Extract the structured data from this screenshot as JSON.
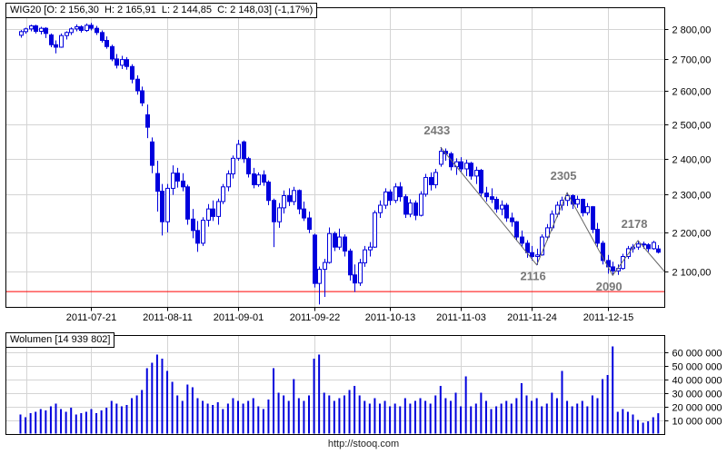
{
  "footer": {
    "url": "http://stooq.com"
  },
  "chart_data": {
    "type": "candlestick_with_volume",
    "instrument": "WIG20",
    "title_main": "WIG20 [O: 2 156,30  H: 2 165,91  L: 2 144,85  C: 2 148,03] (-1,17%)",
    "title_volume": "Wolumen [14 939 802]",
    "last_session": {
      "open": "2 156,30",
      "high": "2 165,91",
      "low": "2 144,85",
      "close": "2 148,03",
      "change_pct": "-1,17%",
      "volume": "14 939 802"
    },
    "colors": {
      "candle": "#0000dd",
      "grid": "#d4d4d4",
      "border": "#000000",
      "support": "#ff0000",
      "zigzag": "#666666",
      "annotation": "#787878",
      "text": "#000000"
    },
    "price_axis": {
      "scale": "log",
      "side": "right",
      "ticks": [
        {
          "value": 2800,
          "label": "2 800,00"
        },
        {
          "value": 2700,
          "label": "2 700,00"
        },
        {
          "value": 2600,
          "label": "2 600,00"
        },
        {
          "value": 2500,
          "label": "2 500,00"
        },
        {
          "value": 2400,
          "label": "2 400,00"
        },
        {
          "value": 2300,
          "label": "2 300,00"
        },
        {
          "value": 2200,
          "label": "2 200,00"
        },
        {
          "value": 2100,
          "label": "2 100,00"
        }
      ]
    },
    "volume_axis": {
      "side": "right",
      "ticks": [
        {
          "value": 60,
          "label": "60 000 000"
        },
        {
          "value": 50,
          "label": "50 000 000"
        },
        {
          "value": 40,
          "label": "40 000 000"
        },
        {
          "value": 30,
          "label": "30 000 000"
        },
        {
          "value": 20,
          "label": "20 000 000"
        },
        {
          "value": 10,
          "label": "10 000 000"
        }
      ]
    },
    "x_axis": {
      "extra_gridline_index": 1.2,
      "labels": [
        {
          "text": "2011-07-21",
          "index": 14
        },
        {
          "text": "2011-08-11",
          "index": 29
        },
        {
          "text": "2011-09-01",
          "index": 43
        },
        {
          "text": "2011-09-22",
          "index": 58
        },
        {
          "text": "2011-10-13",
          "index": 73
        },
        {
          "text": "2011-11-03",
          "index": 87
        },
        {
          "text": "2011-11-24",
          "index": 101
        },
        {
          "text": "2011-12-15",
          "index": 116
        }
      ]
    },
    "support_line": {
      "value": 2050
    },
    "zigzag_points": [
      {
        "index": 83,
        "value": 2433
      },
      {
        "index": 102,
        "value": 2116
      },
      {
        "index": 108,
        "value": 2305
      },
      {
        "index": 117,
        "value": 2090
      },
      {
        "index": 122,
        "value": 2178
      },
      {
        "index": 127.2,
        "value": 2100
      }
    ],
    "annotations": [
      {
        "text": "2433",
        "index": 83,
        "value": 2433,
        "placement": "above"
      },
      {
        "text": "2116",
        "index": 102,
        "value": 2116,
        "placement": "below"
      },
      {
        "text": "2305",
        "index": 108,
        "value": 2305,
        "placement": "above"
      },
      {
        "text": "2090",
        "index": 117,
        "value": 2090,
        "placement": "below"
      },
      {
        "text": "2178",
        "index": 122,
        "value": 2178,
        "placement": "above"
      }
    ],
    "candles_format": [
      "date",
      "open",
      "high",
      "low",
      "close",
      "volume_millions"
    ],
    "candles": [
      [
        "2011-07-01",
        2778,
        2795,
        2770,
        2790,
        14
      ],
      [
        "2011-07-04",
        2790,
        2803,
        2783,
        2799,
        12
      ],
      [
        "2011-07-05",
        2799,
        2813,
        2791,
        2809,
        15
      ],
      [
        "2011-07-06",
        2809,
        2813,
        2784,
        2791,
        16
      ],
      [
        "2011-07-07",
        2791,
        2806,
        2781,
        2801,
        18
      ],
      [
        "2011-07-08",
        2801,
        2805,
        2769,
        2784,
        17
      ],
      [
        "2011-07-11",
        2779,
        2784,
        2739,
        2747,
        20
      ],
      [
        "2011-07-12",
        2747,
        2761,
        2719,
        2739,
        22
      ],
      [
        "2011-07-13",
        2739,
        2784,
        2737,
        2777,
        18
      ],
      [
        "2011-07-14",
        2777,
        2791,
        2764,
        2787,
        16
      ],
      [
        "2011-07-15",
        2787,
        2804,
        2779,
        2799,
        19
      ],
      [
        "2011-07-18",
        2799,
        2814,
        2791,
        2806,
        14
      ],
      [
        "2011-07-19",
        2806,
        2811,
        2787,
        2794,
        15
      ],
      [
        "2011-07-20",
        2794,
        2817,
        2789,
        2811,
        16
      ],
      [
        "2011-07-21",
        2811,
        2819,
        2794,
        2801,
        18
      ],
      [
        "2011-07-22",
        2801,
        2809,
        2779,
        2787,
        15
      ],
      [
        "2011-07-25",
        2787,
        2794,
        2754,
        2761,
        17
      ],
      [
        "2011-07-26",
        2761,
        2774,
        2734,
        2741,
        19
      ],
      [
        "2011-07-27",
        2741,
        2747,
        2694,
        2701,
        24
      ],
      [
        "2011-07-28",
        2701,
        2717,
        2671,
        2681,
        22
      ],
      [
        "2011-07-29",
        2681,
        2711,
        2669,
        2699,
        20
      ],
      [
        "2011-08-01",
        2699,
        2707,
        2667,
        2677,
        21
      ],
      [
        "2011-08-02",
        2677,
        2684,
        2624,
        2637,
        26
      ],
      [
        "2011-08-03",
        2637,
        2649,
        2589,
        2601,
        28
      ],
      [
        "2011-08-04",
        2601,
        2614,
        2554,
        2564,
        32
      ],
      [
        "2011-08-05",
        2528,
        2559,
        2459,
        2491,
        48
      ],
      [
        "2011-08-08",
        2448,
        2461,
        2359,
        2381,
        52
      ],
      [
        "2011-08-09",
        2358,
        2394,
        2254,
        2309,
        58
      ],
      [
        "2011-08-10",
        2309,
        2329,
        2191,
        2227,
        55
      ],
      [
        "2011-08-11",
        2227,
        2329,
        2199,
        2317,
        46
      ],
      [
        "2011-08-12",
        2317,
        2381,
        2299,
        2359,
        38
      ],
      [
        "2011-08-16",
        2359,
        2374,
        2319,
        2337,
        28
      ],
      [
        "2011-08-17",
        2337,
        2359,
        2309,
        2321,
        24
      ],
      [
        "2011-08-18",
        2321,
        2327,
        2219,
        2234,
        36
      ],
      [
        "2011-08-19",
        2234,
        2261,
        2184,
        2204,
        34
      ],
      [
        "2011-08-22",
        2204,
        2229,
        2149,
        2171,
        26
      ],
      [
        "2011-08-23",
        2171,
        2239,
        2164,
        2231,
        24
      ],
      [
        "2011-08-24",
        2231,
        2274,
        2214,
        2261,
        22
      ],
      [
        "2011-08-25",
        2261,
        2284,
        2229,
        2241,
        21
      ],
      [
        "2011-08-26",
        2241,
        2289,
        2219,
        2281,
        23
      ],
      [
        "2011-08-29",
        2281,
        2329,
        2274,
        2321,
        18
      ],
      [
        "2011-08-30",
        2321,
        2367,
        2309,
        2357,
        22
      ],
      [
        "2011-08-31",
        2357,
        2409,
        2344,
        2401,
        26
      ],
      [
        "2011-09-01",
        2401,
        2454,
        2394,
        2441,
        24
      ],
      [
        "2011-09-02",
        2448,
        2452,
        2388,
        2400,
        22
      ],
      [
        "2011-09-05",
        2400,
        2405,
        2347,
        2357,
        24
      ],
      [
        "2011-09-06",
        2357,
        2374,
        2317,
        2327,
        26
      ],
      [
        "2011-09-07",
        2327,
        2361,
        2321,
        2354,
        20
      ],
      [
        "2011-09-08",
        2354,
        2367,
        2324,
        2334,
        18
      ],
      [
        "2011-09-09",
        2334,
        2339,
        2271,
        2284,
        25
      ],
      [
        "2011-09-12",
        2284,
        2289,
        2161,
        2227,
        48
      ],
      [
        "2011-09-13",
        2227,
        2277,
        2211,
        2264,
        30
      ],
      [
        "2011-09-14",
        2264,
        2311,
        2249,
        2297,
        28
      ],
      [
        "2011-09-15",
        2297,
        2317,
        2269,
        2281,
        24
      ],
      [
        "2011-09-16",
        2281,
        2321,
        2271,
        2311,
        40
      ],
      [
        "2011-09-19",
        2311,
        2314,
        2247,
        2261,
        26
      ],
      [
        "2011-09-20",
        2261,
        2281,
        2229,
        2237,
        24
      ],
      [
        "2011-09-21",
        2237,
        2254,
        2197,
        2207,
        28
      ],
      [
        "2011-09-22",
        2192,
        2196,
        2060,
        2070,
        55
      ],
      [
        "2011-09-23",
        2070,
        2112,
        2019,
        2105,
        58
      ],
      [
        "2011-09-26",
        2105,
        2131,
        2037,
        2122,
        30
      ],
      [
        "2011-09-27",
        2122,
        2212,
        2119,
        2196,
        28
      ],
      [
        "2011-09-28",
        2196,
        2201,
        2151,
        2161,
        24
      ],
      [
        "2011-09-29",
        2161,
        2209,
        2154,
        2187,
        26
      ],
      [
        "2011-09-30",
        2187,
        2194,
        2137,
        2151,
        28
      ],
      [
        "2011-10-03",
        2151,
        2157,
        2077,
        2091,
        32
      ],
      [
        "2011-10-04",
        2091,
        2117,
        2049,
        2071,
        35
      ],
      [
        "2011-10-05",
        2071,
        2131,
        2064,
        2121,
        28
      ],
      [
        "2011-10-06",
        2121,
        2164,
        2111,
        2154,
        24
      ],
      [
        "2011-10-07",
        2154,
        2174,
        2137,
        2161,
        22
      ],
      [
        "2011-10-10",
        2161,
        2257,
        2159,
        2251,
        26
      ],
      [
        "2011-10-11",
        2251,
        2284,
        2237,
        2271,
        22
      ],
      [
        "2011-10-12",
        2271,
        2317,
        2261,
        2307,
        24
      ],
      [
        "2011-10-13",
        2307,
        2314,
        2271,
        2284,
        20
      ],
      [
        "2011-10-14",
        2284,
        2331,
        2277,
        2321,
        22
      ],
      [
        "2011-10-17",
        2321,
        2334,
        2281,
        2294,
        20
      ],
      [
        "2011-10-18",
        2294,
        2301,
        2237,
        2247,
        26
      ],
      [
        "2011-10-19",
        2247,
        2287,
        2239,
        2277,
        22
      ],
      [
        "2011-10-20",
        2277,
        2284,
        2231,
        2244,
        24
      ],
      [
        "2011-10-21",
        2244,
        2309,
        2241,
        2301,
        26
      ],
      [
        "2011-10-24",
        2301,
        2357,
        2294,
        2347,
        24
      ],
      [
        "2011-10-25",
        2347,
        2361,
        2311,
        2327,
        22
      ],
      [
        "2011-10-26",
        2327,
        2371,
        2317,
        2361,
        28
      ],
      [
        "2011-10-27",
        2384,
        2433,
        2377,
        2421,
        35
      ],
      [
        "2011-10-28",
        2421,
        2429,
        2394,
        2414,
        26
      ],
      [
        "2011-10-31",
        2414,
        2419,
        2367,
        2377,
        24
      ],
      [
        "2011-11-02",
        2377,
        2401,
        2354,
        2391,
        30
      ],
      [
        "2011-11-03",
        2391,
        2404,
        2361,
        2371,
        20
      ],
      [
        "2011-11-04",
        2371,
        2397,
        2351,
        2387,
        42
      ],
      [
        "2011-11-07",
        2387,
        2391,
        2341,
        2351,
        20
      ],
      [
        "2011-11-08",
        2351,
        2377,
        2329,
        2367,
        22
      ],
      [
        "2011-11-09",
        2367,
        2371,
        2294,
        2304,
        30
      ],
      [
        "2011-11-10",
        2304,
        2321,
        2281,
        2294,
        24
      ],
      [
        "2011-11-14",
        2294,
        2317,
        2277,
        2287,
        18
      ],
      [
        "2011-11-15",
        2287,
        2294,
        2251,
        2261,
        20
      ],
      [
        "2011-11-16",
        2261,
        2284,
        2244,
        2271,
        22
      ],
      [
        "2011-11-17",
        2271,
        2277,
        2227,
        2237,
        24
      ],
      [
        "2011-11-18",
        2237,
        2251,
        2214,
        2227,
        22
      ],
      [
        "2011-11-21",
        2227,
        2229,
        2177,
        2187,
        26
      ],
      [
        "2011-11-22",
        2187,
        2204,
        2161,
        2171,
        37
      ],
      [
        "2011-11-23",
        2171,
        2179,
        2134,
        2147,
        28
      ],
      [
        "2011-11-24",
        2147,
        2164,
        2127,
        2137,
        24
      ],
      [
        "2011-11-25",
        2137,
        2157,
        2116,
        2141,
        26
      ],
      [
        "2011-11-28",
        2141,
        2194,
        2139,
        2187,
        20
      ],
      [
        "2011-11-29",
        2187,
        2221,
        2179,
        2211,
        22
      ],
      [
        "2011-11-30",
        2211,
        2257,
        2204,
        2247,
        30
      ],
      [
        "2011-12-01",
        2247,
        2281,
        2239,
        2271,
        26
      ],
      [
        "2011-12-02",
        2271,
        2294,
        2257,
        2284,
        46
      ],
      [
        "2011-12-05",
        2284,
        2305,
        2269,
        2297,
        24
      ],
      [
        "2011-12-06",
        2297,
        2301,
        2261,
        2274,
        20
      ],
      [
        "2011-12-07",
        2274,
        2297,
        2264,
        2287,
        22
      ],
      [
        "2011-12-08",
        2287,
        2289,
        2241,
        2251,
        24
      ],
      [
        "2011-12-09",
        2251,
        2277,
        2244,
        2267,
        20
      ],
      [
        "2011-12-12",
        2267,
        2269,
        2197,
        2207,
        28
      ],
      [
        "2011-12-13",
        2207,
        2224,
        2161,
        2171,
        26
      ],
      [
        "2011-12-14",
        2171,
        2177,
        2117,
        2127,
        40
      ],
      [
        "2011-12-15",
        2127,
        2141,
        2094,
        2111,
        43
      ],
      [
        "2011-12-16",
        2111,
        2124,
        2090,
        2101,
        64
      ],
      [
        "2011-12-19",
        2101,
        2117,
        2091,
        2107,
        16
      ],
      [
        "2011-12-20",
        2107,
        2144,
        2104,
        2137,
        18
      ],
      [
        "2011-12-21",
        2137,
        2164,
        2131,
        2157,
        16
      ],
      [
        "2011-12-22",
        2157,
        2169,
        2147,
        2161,
        14
      ],
      [
        "2011-12-23",
        2161,
        2178,
        2154,
        2169,
        10
      ],
      [
        "2011-12-27",
        2169,
        2175,
        2157,
        2167,
        8
      ],
      [
        "2011-12-28",
        2167,
        2171,
        2149,
        2157,
        9
      ],
      [
        "2011-12-29",
        2157,
        2177,
        2154,
        2173,
        12
      ],
      [
        "2011-12-30",
        2156.3,
        2165.91,
        2144.85,
        2148.03,
        14.94
      ]
    ]
  }
}
